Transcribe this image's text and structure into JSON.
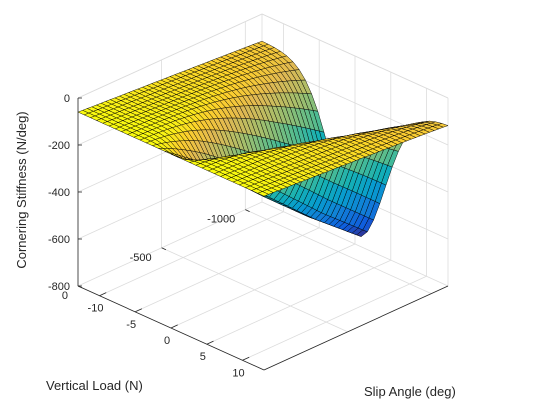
{
  "chart_data": {
    "type": "surface",
    "title": "",
    "xlabel": "Slip Angle (deg)",
    "ylabel": "Vertical Load (N)",
    "zlabel": "Cornering Stiffness (N/deg)",
    "colormap": "parula",
    "xlim": [
      -13,
      13
    ],
    "ylim": [
      -1100,
      0
    ],
    "zlim": [
      -800,
      0
    ],
    "xticks": [
      -10,
      -5,
      0,
      5,
      10
    ],
    "yticks": [
      0,
      -500,
      -1000
    ],
    "zticks": [
      0,
      -200,
      -400,
      -600,
      -800
    ],
    "grid": true,
    "surface": {
      "description_of_axes": "x = slip angle from -13 to 13 deg, y = vertical load from -1100 to 0 N",
      "x_range": [
        -13,
        13
      ],
      "y_range": [
        -1100,
        0
      ],
      "x_count": 30,
      "y_count": 40,
      "z_at_zero_slip_by_load": {
        "load": [
          0,
          -275,
          -550,
          -825,
          -1100
        ],
        "z": [
          -60,
          -230,
          -420,
          -600,
          -760
        ]
      },
      "z_at_large_slip": -60
    }
  }
}
